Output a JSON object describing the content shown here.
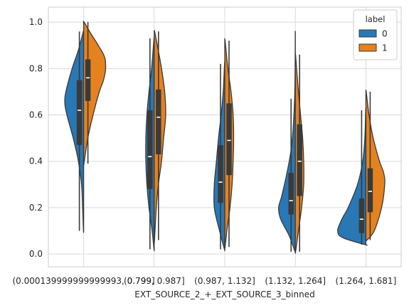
{
  "chart_data": {
    "type": "violin",
    "style": "split violins with inner box plots, whitegrid",
    "xlabel": "EXT_SOURCE_2_+_EXT_SOURCE_3_binned",
    "ylabel": "",
    "categories": [
      "(0.000139999999999993, 0.799]",
      "(0.799, 0.987]",
      "(0.987, 1.132]",
      "(1.132, 1.264]",
      "(1.264, 1.681]"
    ],
    "yticks": [
      0.0,
      0.2,
      0.4,
      0.6,
      0.8,
      1.0
    ],
    "ylim": [
      -0.055,
      1.065
    ],
    "grid": true,
    "legend": {
      "title": "label",
      "placement": "top-right",
      "entries": [
        "0",
        "1"
      ]
    },
    "colors": {
      "0": "#2878b5",
      "1": "#e5821f",
      "outline": "#3a3a3a",
      "grid": "#d9d9d9"
    },
    "series": [
      {
        "name": "0",
        "violins": [
          {
            "min": 0.1,
            "max": 0.96,
            "q1": 0.47,
            "median": 0.62,
            "q3": 0.75,
            "whisker_low": 0.1,
            "whisker_high": 0.96,
            "density": [
              [
                0.1,
                0.002
              ],
              [
                0.2,
                0.01
              ],
              [
                0.3,
                0.02
              ],
              [
                0.4,
                0.05
              ],
              [
                0.5,
                0.1
              ],
              [
                0.6,
                0.16
              ],
              [
                0.65,
                0.18
              ],
              [
                0.7,
                0.17
              ],
              [
                0.8,
                0.11
              ],
              [
                0.88,
                0.05
              ],
              [
                0.96,
                0.003
              ]
            ]
          },
          {
            "min": 0.02,
            "max": 0.93,
            "q1": 0.28,
            "median": 0.42,
            "q3": 0.62,
            "whisker_low": 0.02,
            "whisker_high": 0.93,
            "density": [
              [
                0.02,
                0.002
              ],
              [
                0.1,
                0.02
              ],
              [
                0.2,
                0.05
              ],
              [
                0.3,
                0.07
              ],
              [
                0.4,
                0.08
              ],
              [
                0.5,
                0.08
              ],
              [
                0.6,
                0.07
              ],
              [
                0.7,
                0.05
              ],
              [
                0.8,
                0.025
              ],
              [
                0.93,
                0.002
              ]
            ]
          },
          {
            "min": 0.02,
            "max": 0.82,
            "q1": 0.22,
            "median": 0.31,
            "q3": 0.47,
            "whisker_low": 0.02,
            "whisker_high": 0.82,
            "density": [
              [
                0.02,
                0.003
              ],
              [
                0.1,
                0.05
              ],
              [
                0.2,
                0.1
              ],
              [
                0.3,
                0.1
              ],
              [
                0.4,
                0.08
              ],
              [
                0.5,
                0.06
              ],
              [
                0.6,
                0.035
              ],
              [
                0.7,
                0.015
              ],
              [
                0.82,
                0.002
              ]
            ]
          },
          {
            "min": 0.01,
            "max": 0.95,
            "q1": 0.17,
            "median": 0.23,
            "q3": 0.35,
            "whisker_low": 0.01,
            "whisker_high": 0.67,
            "density": [
              [
                0.01,
                0.003
              ],
              [
                0.08,
                0.06
              ],
              [
                0.15,
                0.14
              ],
              [
                0.2,
                0.16
              ],
              [
                0.25,
                0.13
              ],
              [
                0.35,
                0.08
              ],
              [
                0.45,
                0.04
              ],
              [
                0.55,
                0.02
              ],
              [
                0.67,
                0.007
              ],
              [
                0.8,
                0.002
              ],
              [
                0.95,
                0.001
              ]
            ]
          },
          {
            "min": 0.04,
            "max": 0.62,
            "q1": 0.09,
            "median": 0.15,
            "q3": 0.24,
            "whisker_low": 0.04,
            "whisker_high": 0.62,
            "density": [
              [
                0.04,
                0.005
              ],
              [
                0.07,
                0.22
              ],
              [
                0.1,
                0.27
              ],
              [
                0.15,
                0.23
              ],
              [
                0.2,
                0.17
              ],
              [
                0.3,
                0.08
              ],
              [
                0.4,
                0.03
              ],
              [
                0.5,
                0.01
              ],
              [
                0.62,
                0.002
              ]
            ]
          }
        ]
      },
      {
        "name": "1",
        "violins": [
          {
            "min": 0.39,
            "max": 1.0,
            "q1": 0.66,
            "median": 0.76,
            "q3": 0.84,
            "whisker_low": 0.39,
            "whisker_high": 1.0,
            "density": [
              [
                0.39,
                0.003
              ],
              [
                0.5,
                0.04
              ],
              [
                0.6,
                0.09
              ],
              [
                0.7,
                0.15
              ],
              [
                0.75,
                0.19
              ],
              [
                0.8,
                0.21
              ],
              [
                0.85,
                0.2
              ],
              [
                0.9,
                0.14
              ],
              [
                0.95,
                0.07
              ],
              [
                1.0,
                0.005
              ]
            ]
          },
          {
            "min": 0.06,
            "max": 0.96,
            "q1": 0.43,
            "median": 0.59,
            "q3": 0.71,
            "whisker_low": 0.06,
            "whisker_high": 0.96,
            "density": [
              [
                0.06,
                0.003
              ],
              [
                0.2,
                0.02
              ],
              [
                0.3,
                0.04
              ],
              [
                0.4,
                0.07
              ],
              [
                0.5,
                0.09
              ],
              [
                0.6,
                0.11
              ],
              [
                0.7,
                0.1
              ],
              [
                0.8,
                0.07
              ],
              [
                0.9,
                0.03
              ],
              [
                0.96,
                0.004
              ]
            ]
          },
          {
            "min": 0.03,
            "max": 0.92,
            "q1": 0.34,
            "median": 0.49,
            "q3": 0.65,
            "whisker_low": 0.03,
            "whisker_high": 0.92,
            "density": [
              [
                0.03,
                0.003
              ],
              [
                0.1,
                0.02
              ],
              [
                0.2,
                0.05
              ],
              [
                0.3,
                0.07
              ],
              [
                0.4,
                0.08
              ],
              [
                0.5,
                0.085
              ],
              [
                0.6,
                0.08
              ],
              [
                0.7,
                0.06
              ],
              [
                0.8,
                0.03
              ],
              [
                0.92,
                0.003
              ]
            ]
          },
          {
            "min": 0.01,
            "max": 0.86,
            "q1": 0.25,
            "median": 0.4,
            "q3": 0.56,
            "whisker_low": 0.01,
            "whisker_high": 0.86,
            "density": [
              [
                0.01,
                0.003
              ],
              [
                0.1,
                0.03
              ],
              [
                0.2,
                0.06
              ],
              [
                0.3,
                0.08
              ],
              [
                0.4,
                0.08
              ],
              [
                0.5,
                0.07
              ],
              [
                0.6,
                0.05
              ],
              [
                0.7,
                0.03
              ],
              [
                0.8,
                0.012
              ],
              [
                0.86,
                0.002
              ]
            ]
          },
          {
            "min": 0.06,
            "max": 0.7,
            "q1": 0.18,
            "median": 0.27,
            "q3": 0.37,
            "whisker_low": 0.06,
            "whisker_high": 0.7,
            "density": [
              [
                0.06,
                0.01
              ],
              [
                0.1,
                0.08
              ],
              [
                0.2,
                0.15
              ],
              [
                0.3,
                0.18
              ],
              [
                0.35,
                0.17
              ],
              [
                0.4,
                0.13
              ],
              [
                0.5,
                0.07
              ],
              [
                0.6,
                0.03
              ],
              [
                0.7,
                0.003
              ]
            ]
          }
        ]
      }
    ]
  }
}
